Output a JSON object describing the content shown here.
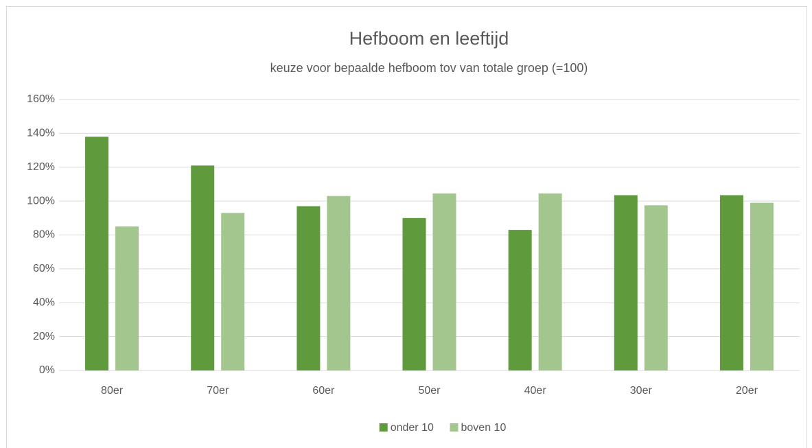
{
  "chart_data": {
    "type": "bar",
    "title": "Hefboom en leeftijd",
    "subtitle": "keuze voor bepaalde hefboom tov van totale groep (=100)",
    "categories": [
      "80er",
      "70er",
      "60er",
      "50er",
      "40er",
      "30er",
      "20er"
    ],
    "series": [
      {
        "name": "onder 10",
        "color": "#5f9a3d",
        "values": [
          138,
          121,
          97,
          90,
          83,
          103.5,
          103.5
        ]
      },
      {
        "name": "boven 10",
        "color": "#a3c68f",
        "values": [
          85,
          93,
          103,
          104.5,
          104.5,
          97.5,
          99
        ]
      }
    ],
    "ylim": [
      0,
      160
    ],
    "yticks": [
      {
        "value": 0,
        "label": "0%"
      },
      {
        "value": 20,
        "label": "20%"
      },
      {
        "value": 40,
        "label": "40%"
      },
      {
        "value": 60,
        "label": "60%"
      },
      {
        "value": 80,
        "label": "80%"
      },
      {
        "value": 100,
        "label": "100%"
      },
      {
        "value": 120,
        "label": "120%"
      },
      {
        "value": 140,
        "label": "140%"
      },
      {
        "value": 160,
        "label": "160%"
      }
    ],
    "grid": true,
    "legend": "bottom"
  }
}
